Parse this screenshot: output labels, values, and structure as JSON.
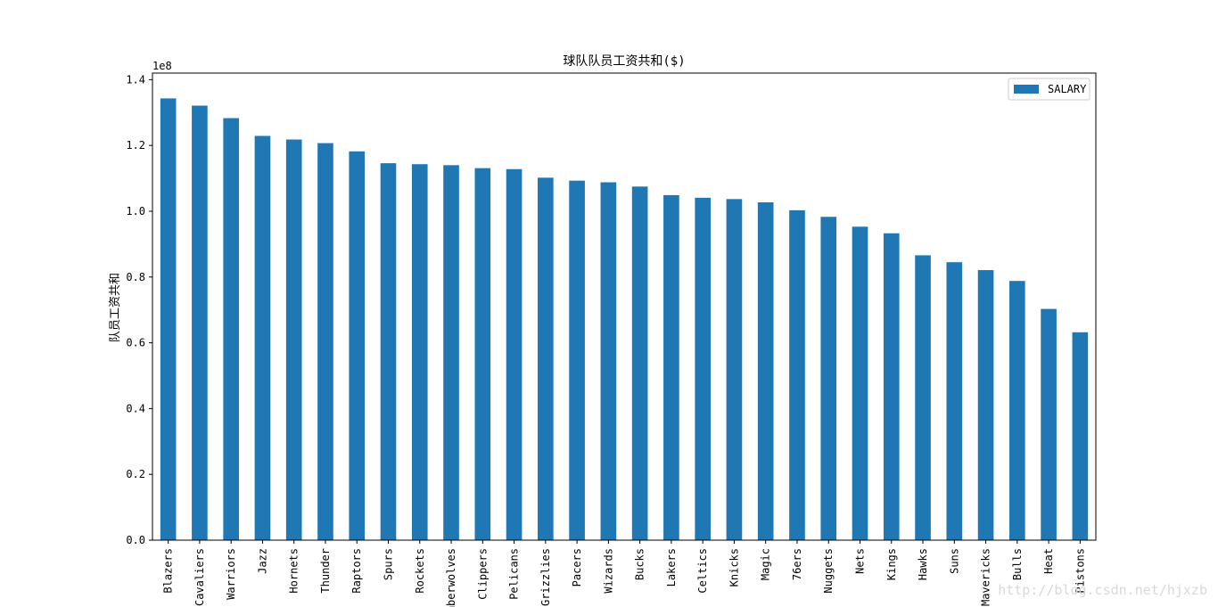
{
  "chart_data": {
    "type": "bar",
    "title": "球队队员工资共和($)",
    "xlabel": "",
    "ylabel": "队员工资共和",
    "y_offset_label": "1e8",
    "ylim": [
      0,
      1.42
    ],
    "yticks": [
      "0.0",
      "0.2",
      "0.4",
      "0.6",
      "0.8",
      "1.0",
      "1.2",
      "1.4"
    ],
    "grid": false,
    "legend_position": "top-right",
    "series": [
      {
        "name": "SALARY",
        "color": "#1f77b4",
        "values": [
          1.343,
          1.321,
          1.283,
          1.229,
          1.218,
          1.207,
          1.182,
          1.146,
          1.143,
          1.14,
          1.131,
          1.128,
          1.102,
          1.093,
          1.088,
          1.075,
          1.049,
          1.041,
          1.037,
          1.027,
          1.003,
          0.983,
          0.953,
          0.933,
          0.866,
          0.845,
          0.821,
          0.788,
          0.703,
          0.632
        ]
      }
    ],
    "categories": [
      "Blazers",
      "Cavaliers",
      "Warriors",
      "Jazz",
      "Hornets",
      "Thunder",
      "Raptors",
      "Spurs",
      "Rockets",
      "Timberwolves",
      "Clippers",
      "Pelicans",
      "Grizzlies",
      "Pacers",
      "Wizards",
      "Bucks",
      "Lakers",
      "Celtics",
      "Knicks",
      "Magic",
      "76ers",
      "Nuggets",
      "Nets",
      "Kings",
      "Hawks",
      "Suns",
      "Mavericks",
      "Bulls",
      "Heat",
      "Pistons"
    ]
  },
  "watermark": "http://blog.csdn.net/hjxzb"
}
